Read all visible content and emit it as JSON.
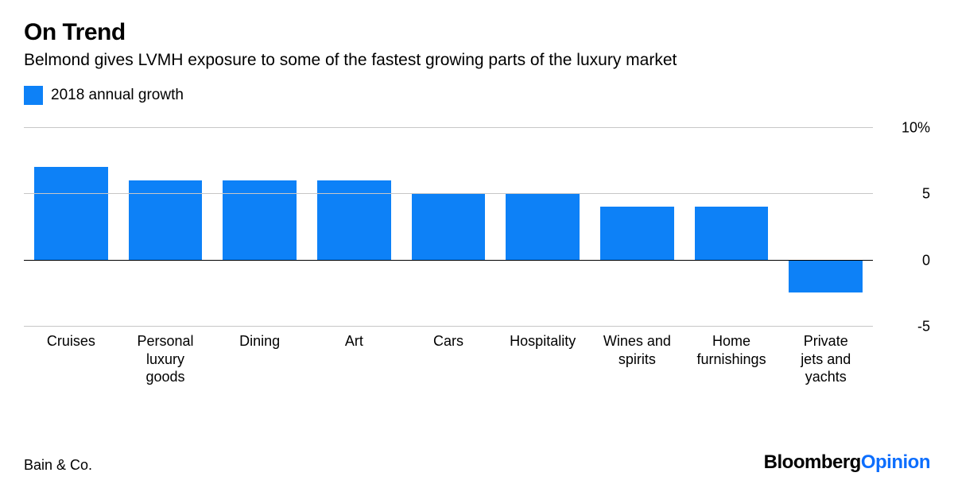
{
  "title": "On Trend",
  "subtitle": "Belmond gives LVMH exposure to some of the fastest growing parts of the luxury market",
  "legend": {
    "label": "2018 annual growth",
    "color": "#0d81f7"
  },
  "chart": {
    "type": "bar",
    "categories": [
      "Cruises",
      "Personal\nluxury\ngoods",
      "Dining",
      "Art",
      "Cars",
      "Hospitality",
      "Wines and\nspirits",
      "Home\nfurnishings",
      "Private\njets and\nyachts"
    ],
    "values": [
      7,
      6,
      6,
      6,
      5,
      5,
      4,
      4,
      -2.5
    ],
    "bar_color": "#0d81f7",
    "ylim": [
      -5,
      10
    ],
    "yticks": [
      -5,
      0,
      5,
      10
    ],
    "ytick_labels": [
      "-5",
      "0",
      "5",
      "10%"
    ],
    "zero_line_color": "#000000",
    "grid_color": "#c7c7c7",
    "background_color": "#ffffff",
    "label_fontsize": 18,
    "bar_width": 0.78
  },
  "source": "Bain & Co.",
  "brand": {
    "part1": "Bloomberg",
    "part2": "Opinion"
  }
}
